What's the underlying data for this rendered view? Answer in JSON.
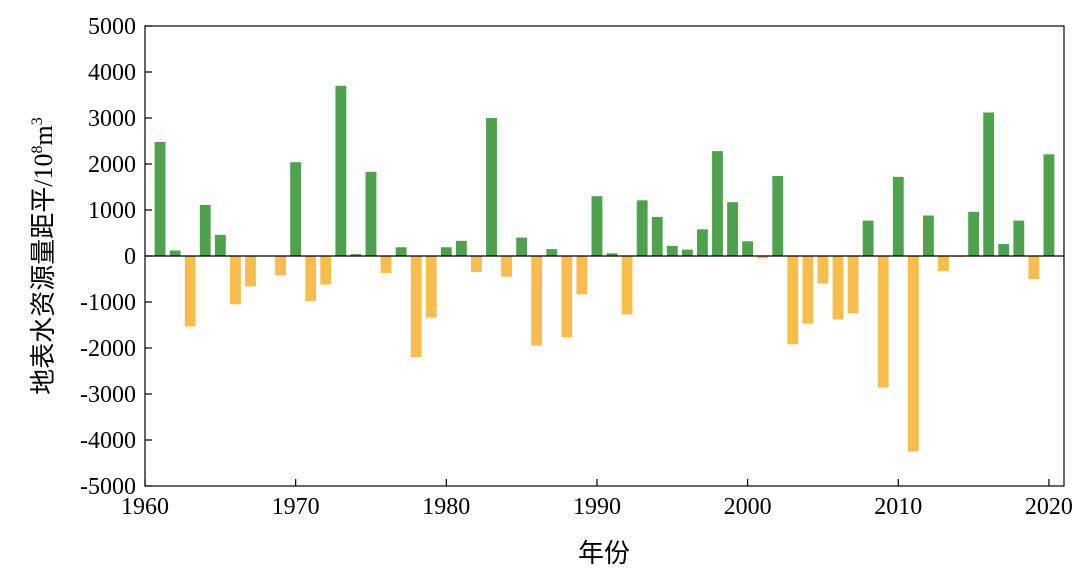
{
  "chart_data": {
    "type": "bar",
    "title": "",
    "xlabel": "年份",
    "ylabel_main": "地表水资源量距平",
    "ylabel_unit": {
      "prefix": "/10",
      "exponent1": "8",
      "middle": "m",
      "exponent2": "3"
    },
    "xlim": [
      1960,
      2021
    ],
    "ylim": [
      -5000,
      5000
    ],
    "xticks": [
      1960,
      1970,
      1980,
      1990,
      2000,
      2010,
      2020
    ],
    "yticks": [
      -5000,
      -4000,
      -3000,
      -2000,
      -1000,
      0,
      1000,
      2000,
      3000,
      4000,
      5000
    ],
    "grid": false,
    "legend": "none",
    "colors": {
      "positive": "#4ea24e",
      "negative": "#f7bd4f",
      "axis": "#000000"
    },
    "years": [
      1961,
      1962,
      1963,
      1964,
      1965,
      1966,
      1967,
      1968,
      1969,
      1970,
      1971,
      1972,
      1973,
      1974,
      1975,
      1976,
      1977,
      1978,
      1979,
      1980,
      1981,
      1982,
      1983,
      1984,
      1985,
      1986,
      1987,
      1988,
      1989,
      1990,
      1991,
      1992,
      1993,
      1994,
      1995,
      1996,
      1997,
      1998,
      1999,
      2000,
      2001,
      2002,
      2003,
      2004,
      2005,
      2006,
      2007,
      2008,
      2009,
      2010,
      2011,
      2012,
      2013,
      2014,
      2015,
      2016,
      2017,
      2018,
      2019,
      2020
    ],
    "values": [
      2480,
      120,
      -1530,
      1110,
      460,
      -1050,
      -660,
      0,
      -420,
      2040,
      -980,
      -620,
      3700,
      40,
      1830,
      -370,
      190,
      -2200,
      -1340,
      190,
      330,
      -350,
      3000,
      -450,
      400,
      -1950,
      150,
      -1770,
      -830,
      1300,
      60,
      -1270,
      1210,
      850,
      220,
      140,
      580,
      2280,
      1170,
      320,
      -50,
      1740,
      -1920,
      -1470,
      -600,
      -1380,
      -1250,
      770,
      -2860,
      1720,
      -4250,
      880,
      -330,
      -20,
      960,
      3120,
      260,
      770,
      -500,
      2210
    ]
  }
}
